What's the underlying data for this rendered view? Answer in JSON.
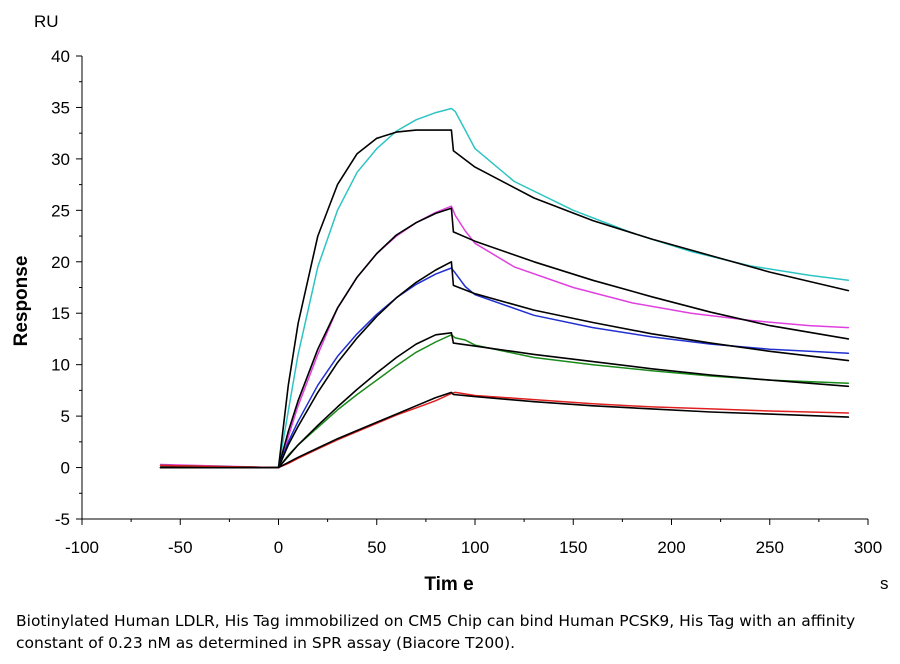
{
  "chart_data": {
    "type": "line",
    "xlabel": "Tim e",
    "ylabel": "Response",
    "x_unit": "s",
    "y_unit": "RU",
    "xlim": [
      -100,
      300
    ],
    "ylim": [
      -5,
      40
    ],
    "x_ticks": [
      -100,
      -50,
      0,
      50,
      100,
      150,
      200,
      250,
      300
    ],
    "y_ticks": [
      -5,
      0,
      5,
      10,
      15,
      20,
      25,
      30,
      35,
      40
    ],
    "grid": false,
    "series": [
      {
        "color": "#2ec4c4",
        "x": [
          -60,
          -20,
          0,
          5,
          10,
          20,
          30,
          40,
          50,
          60,
          70,
          80,
          88,
          90,
          95,
          100,
          120,
          150,
          180,
          210,
          240,
          270,
          290
        ],
        "y": [
          0.2,
          0,
          0,
          5.5,
          11,
          19.5,
          25,
          28.7,
          31,
          32.7,
          33.8,
          34.5,
          34.9,
          34.6,
          32.8,
          31.0,
          27.8,
          25.0,
          22.8,
          21.0,
          19.6,
          18.7,
          18.2
        ]
      },
      {
        "color": "#000000",
        "x": [
          -60,
          0,
          5,
          10,
          20,
          30,
          40,
          50,
          60,
          70,
          80,
          88,
          89,
          100,
          130,
          160,
          190,
          220,
          250,
          290
        ],
        "y": [
          0,
          0,
          8,
          14,
          22.5,
          27.5,
          30.5,
          32,
          32.6,
          32.8,
          32.8,
          32.8,
          30.8,
          29.2,
          26.2,
          24.0,
          22.2,
          20.6,
          19.0,
          17.2
        ]
      },
      {
        "color": "#e040e0",
        "x": [
          -60,
          0,
          5,
          10,
          20,
          30,
          40,
          50,
          60,
          70,
          80,
          88,
          90,
          95,
          100,
          120,
          150,
          180,
          210,
          240,
          270,
          290
        ],
        "y": [
          0.3,
          0,
          3,
          6,
          11,
          15.5,
          18.5,
          20.8,
          22.5,
          23.8,
          24.8,
          25.4,
          24.5,
          23.0,
          21.8,
          19.5,
          17.5,
          16.0,
          15.0,
          14.3,
          13.8,
          13.6
        ]
      },
      {
        "color": "#000000",
        "x": [
          -60,
          0,
          5,
          10,
          20,
          30,
          40,
          50,
          60,
          70,
          80,
          88,
          89,
          100,
          130,
          160,
          190,
          220,
          250,
          290
        ],
        "y": [
          0,
          0,
          3.5,
          6.5,
          11.5,
          15.5,
          18.5,
          20.8,
          22.6,
          23.8,
          24.7,
          25.2,
          22.9,
          22.0,
          20.0,
          18.2,
          16.6,
          15.1,
          13.8,
          12.5
        ]
      },
      {
        "color": "#2030d0",
        "x": [
          -60,
          0,
          5,
          10,
          20,
          30,
          40,
          50,
          60,
          70,
          80,
          88,
          90,
          95,
          100,
          130,
          160,
          190,
          220,
          250,
          290
        ],
        "y": [
          0.2,
          0,
          2.5,
          4.5,
          8,
          10.8,
          13,
          14.9,
          16.5,
          17.8,
          18.8,
          19.4,
          18.9,
          17.6,
          16.8,
          14.8,
          13.6,
          12.7,
          12.0,
          11.5,
          11.1
        ]
      },
      {
        "color": "#000000",
        "x": [
          -60,
          0,
          5,
          10,
          20,
          30,
          40,
          50,
          60,
          70,
          80,
          88,
          89,
          100,
          130,
          160,
          190,
          220,
          250,
          290
        ],
        "y": [
          0,
          0,
          2.2,
          4.0,
          7.3,
          10.2,
          12.6,
          14.7,
          16.5,
          18.0,
          19.2,
          20.0,
          17.7,
          16.9,
          15.3,
          14.1,
          13.0,
          12.1,
          11.3,
          10.4
        ]
      },
      {
        "color": "#1a8a1a",
        "x": [
          -60,
          0,
          5,
          10,
          20,
          30,
          40,
          50,
          60,
          70,
          80,
          88,
          90,
          95,
          100,
          130,
          160,
          190,
          220,
          250,
          290
        ],
        "y": [
          0.2,
          0,
          1.2,
          2.2,
          3.9,
          5.6,
          7.1,
          8.5,
          9.9,
          11.2,
          12.2,
          12.9,
          12.6,
          12.4,
          11.9,
          10.7,
          10.0,
          9.4,
          8.9,
          8.5,
          8.2
        ]
      },
      {
        "color": "#000000",
        "x": [
          -60,
          0,
          5,
          10,
          20,
          30,
          40,
          50,
          60,
          70,
          80,
          88,
          89,
          100,
          130,
          160,
          190,
          220,
          250,
          290
        ],
        "y": [
          0,
          0,
          1.1,
          2.2,
          4.1,
          5.9,
          7.6,
          9.2,
          10.7,
          12.0,
          12.9,
          13.1,
          12.1,
          11.8,
          11.0,
          10.3,
          9.6,
          9.0,
          8.5,
          7.9
        ]
      },
      {
        "color": "#e02020",
        "x": [
          -60,
          0,
          5,
          10,
          20,
          30,
          40,
          50,
          60,
          70,
          80,
          88,
          90,
          100,
          130,
          160,
          190,
          220,
          250,
          290
        ],
        "y": [
          0.2,
          0,
          0.4,
          0.9,
          1.8,
          2.7,
          3.5,
          4.3,
          5.1,
          5.8,
          6.5,
          7.2,
          7.3,
          7.0,
          6.6,
          6.2,
          5.9,
          5.7,
          5.5,
          5.3
        ]
      },
      {
        "color": "#000000",
        "x": [
          -60,
          0,
          5,
          10,
          20,
          30,
          40,
          50,
          60,
          70,
          80,
          88,
          89,
          100,
          130,
          160,
          190,
          220,
          250,
          290
        ],
        "y": [
          0,
          0,
          0.5,
          1.0,
          1.9,
          2.8,
          3.6,
          4.4,
          5.2,
          6.0,
          6.8,
          7.3,
          7.1,
          6.9,
          6.4,
          6.0,
          5.7,
          5.4,
          5.2,
          4.9
        ]
      }
    ]
  },
  "caption": "Biotinylated Human LDLR, His Tag immobilized on CM5 Chip can bind Human PCSK9, His Tag with an affinity constant of 0.23 nM as determined in SPR assay (Biacore T200)."
}
